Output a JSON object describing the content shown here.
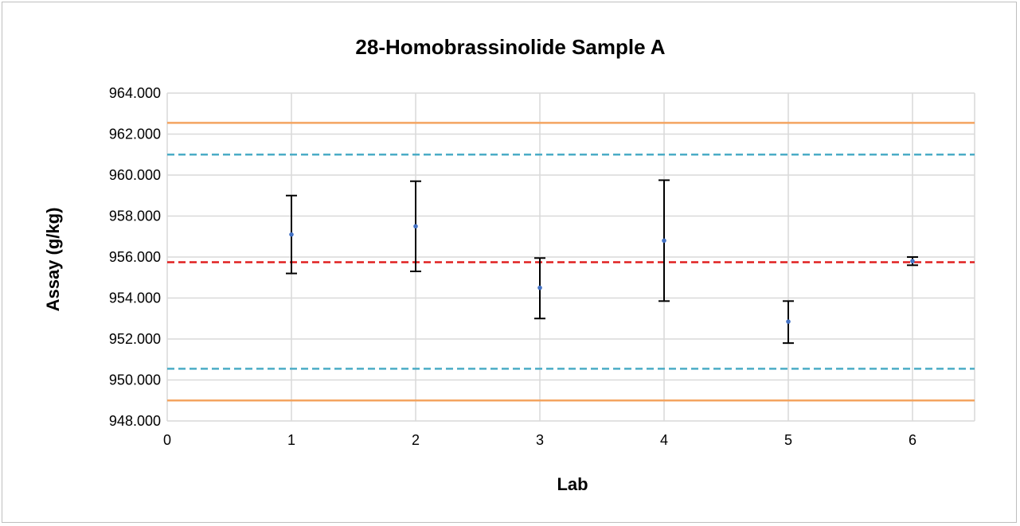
{
  "chart_data": {
    "type": "scatter",
    "title": "28-Homobrassinolide Sample A",
    "xlabel": "Lab",
    "ylabel": "Assay (g/kg)",
    "xlim": [
      0,
      6.5
    ],
    "ylim": [
      948,
      964
    ],
    "x_ticks": [
      0,
      1,
      2,
      3,
      4,
      5,
      6
    ],
    "x_tick_labels": [
      "0",
      "1",
      "2",
      "3",
      "4",
      "5",
      "6"
    ],
    "y_ticks": [
      948,
      950,
      952,
      954,
      956,
      958,
      960,
      962,
      964
    ],
    "y_tick_labels": [
      "948.000",
      "950.000",
      "952.000",
      "954.000",
      "956.000",
      "958.000",
      "960.000",
      "962.000",
      "964.000"
    ],
    "grid": true,
    "series": [
      {
        "type": "scatter_errorbar",
        "color": "#4472c4",
        "error_color": "#000000",
        "points": [
          {
            "x": 1,
            "y": 957.1,
            "low": 955.2,
            "high": 959.0
          },
          {
            "x": 2,
            "y": 957.5,
            "low": 955.3,
            "high": 959.7
          },
          {
            "x": 3,
            "y": 954.5,
            "low": 953.0,
            "high": 955.95
          },
          {
            "x": 4,
            "y": 956.8,
            "low": 953.85,
            "high": 959.75
          },
          {
            "x": 5,
            "y": 952.85,
            "low": 951.8,
            "high": 953.85
          },
          {
            "x": 6,
            "y": 955.8,
            "low": 955.6,
            "high": 956.0
          }
        ]
      }
    ],
    "reference_lines": [
      {
        "y": 962.55,
        "style": "solid",
        "color": "#f4a460"
      },
      {
        "y": 961.0,
        "style": "dashed",
        "color": "#4bacc6"
      },
      {
        "y": 955.75,
        "style": "dashed",
        "color": "#e02020"
      },
      {
        "y": 950.55,
        "style": "dashed",
        "color": "#4bacc6"
      },
      {
        "y": 949.0,
        "style": "solid",
        "color": "#f4a460"
      }
    ]
  }
}
